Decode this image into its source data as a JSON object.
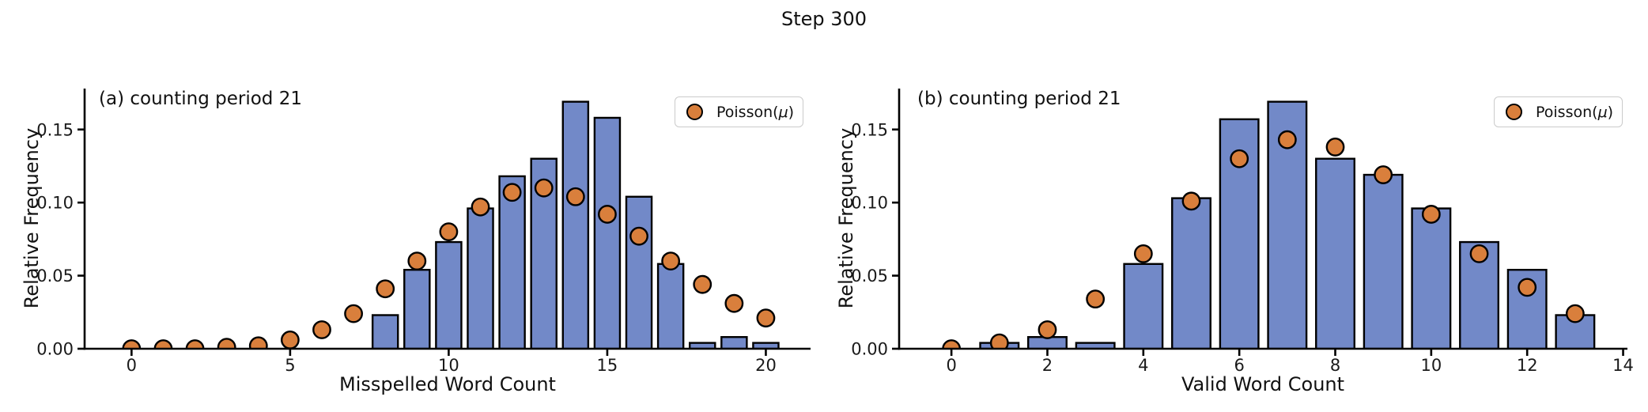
{
  "figure": {
    "title": "Step 300"
  },
  "colors": {
    "bar_fill": "#7289c8",
    "bar_edge": "#000000",
    "dot_fill": "#d97f3c",
    "dot_edge": "#000000",
    "axis": "#000000",
    "legend_border": "#cbcbcb"
  },
  "chart_data": [
    {
      "type": "bar",
      "panel_label": "(a) counting period 21",
      "xlabel": "Misspelled Word Count",
      "ylabel": "Relative Frequency",
      "xlim": [
        -1.48,
        21.41
      ],
      "ylim": [
        0,
        0.178
      ],
      "xticks": [
        0,
        5,
        10,
        15,
        20
      ],
      "xtick_labels": [
        "0",
        "5",
        "10",
        "15",
        "20"
      ],
      "yticks": [
        0,
        0.05,
        0.1,
        0.15
      ],
      "ytick_labels": [
        "0.00",
        "0.05",
        "0.10",
        "0.15"
      ],
      "grid": false,
      "legend_position": "upper right",
      "legend": {
        "label": "Poisson(μ)",
        "label_prefix": "Poisson(",
        "mu": "μ",
        "label_suffix": ")"
      },
      "bar_width": 0.8,
      "categories": [
        0,
        1,
        2,
        3,
        4,
        5,
        6,
        7,
        8,
        9,
        10,
        11,
        12,
        13,
        14,
        15,
        16,
        17,
        18,
        19,
        20
      ],
      "series": [
        {
          "name": "relative frequency histogram",
          "type": "bar",
          "values": [
            0,
            0,
            0,
            0,
            0,
            0,
            0,
            0,
            0.023,
            0.054,
            0.073,
            0.096,
            0.118,
            0.13,
            0.169,
            0.158,
            0.104,
            0.058,
            0.004,
            0.008,
            0.004
          ]
        },
        {
          "name": "Poisson(μ)",
          "type": "scatter",
          "values": [
            0.0,
            0.0,
            0.0,
            0.001,
            0.002,
            0.006,
            0.013,
            0.024,
            0.041,
            0.06,
            0.08,
            0.097,
            0.107,
            0.11,
            0.104,
            0.092,
            0.077,
            0.06,
            0.044,
            0.031,
            0.021
          ]
        }
      ]
    },
    {
      "type": "bar",
      "panel_label": "(b) counting period 21",
      "xlabel": "Valid Word Count",
      "ylabel": "Relative Frequency",
      "xlim": [
        -1.09,
        14.09
      ],
      "ylim": [
        0,
        0.178
      ],
      "xticks": [
        0,
        2,
        4,
        6,
        8,
        10,
        12,
        14
      ],
      "xtick_labels": [
        "0",
        "2",
        "4",
        "6",
        "8",
        "10",
        "12",
        "14"
      ],
      "yticks": [
        0,
        0.05,
        0.1,
        0.15
      ],
      "ytick_labels": [
        "0.00",
        "0.05",
        "0.10",
        "0.15"
      ],
      "grid": false,
      "legend_position": "upper right",
      "legend": {
        "label": "Poisson(μ)",
        "label_prefix": "Poisson(",
        "mu": "μ",
        "label_suffix": ")"
      },
      "bar_width": 0.8,
      "categories": [
        0,
        1,
        2,
        3,
        4,
        5,
        6,
        7,
        8,
        9,
        10,
        11,
        12,
        13
      ],
      "series": [
        {
          "name": "relative frequency histogram",
          "type": "bar",
          "values": [
            0,
            0.004,
            0.008,
            0.004,
            0.058,
            0.103,
            0.157,
            0.169,
            0.13,
            0.119,
            0.096,
            0.073,
            0.054,
            0.023
          ]
        },
        {
          "name": "Poisson(μ)",
          "type": "scatter",
          "values": [
            0.0,
            0.004,
            0.013,
            0.034,
            0.065,
            0.101,
            0.13,
            0.143,
            0.138,
            0.119,
            0.092,
            0.065,
            0.042,
            0.024
          ]
        }
      ]
    }
  ]
}
